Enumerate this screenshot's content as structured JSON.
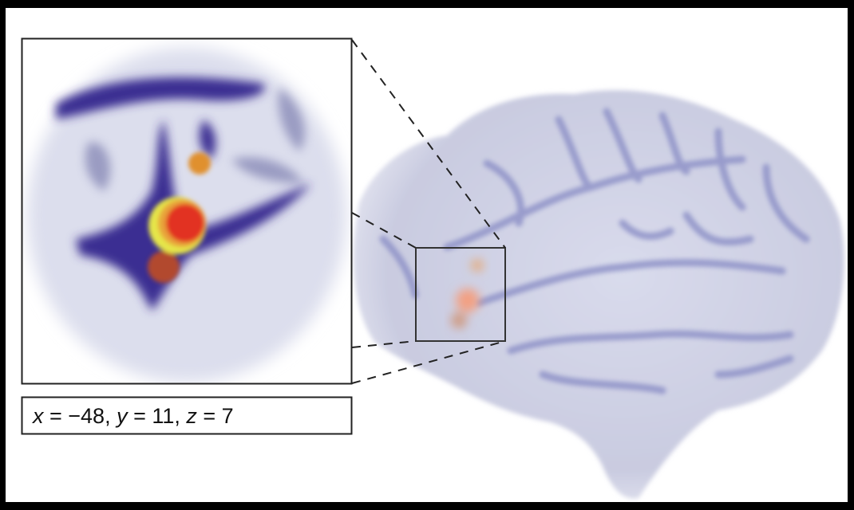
{
  "coordinates": [
    "x",
    " = −48, ",
    "y",
    " = 11, ",
    "z",
    " = 7"
  ]
}
